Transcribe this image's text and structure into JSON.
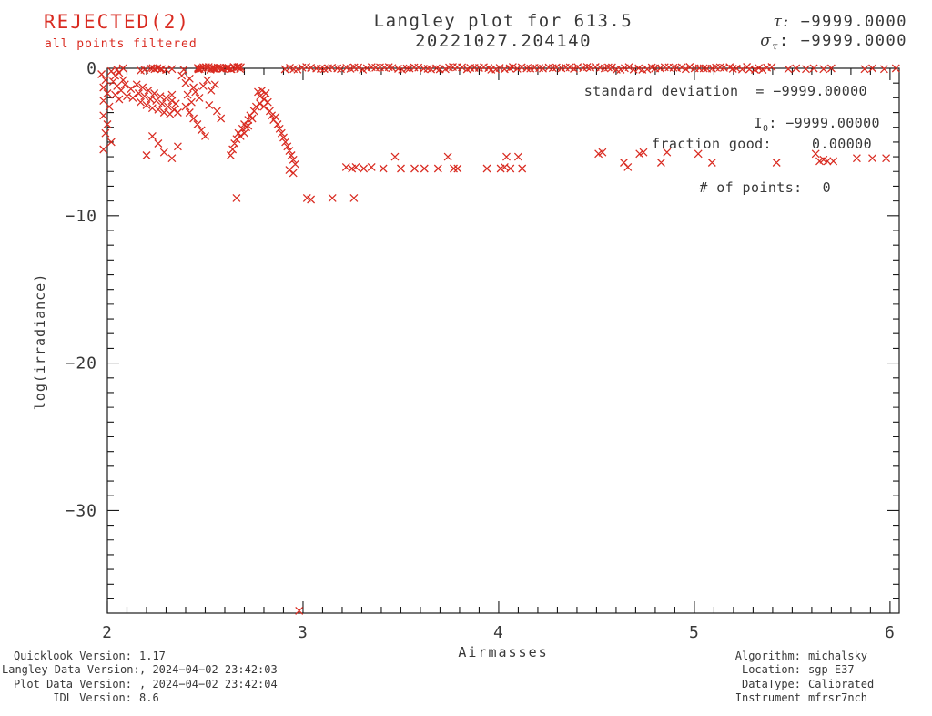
{
  "status": {
    "rejected": "REJECTED(2)",
    "rejected_detail": "all points filtered"
  },
  "header": {
    "title_line1": "Langley plot for 613.5",
    "title_line2": "20221027.204140",
    "tau_label": "τ:",
    "tau_value": "−9999.0000",
    "sigma_label": "σ",
    "sigma_sub": "τ",
    "sigma_colon": ":",
    "sigma_value": "−9999.0000"
  },
  "stats": {
    "std_label": "standard deviation",
    "std_eq": "=",
    "std_value": "−9999.00000",
    "i0_label": "I",
    "i0_sub": "0",
    "i0_colon": ":",
    "i0_value": "−9999.00000",
    "fraction_label": "fraction good:",
    "fraction_value": "0.00000",
    "points_label": "# of points:",
    "points_value": "0"
  },
  "footer_left": {
    "rows": [
      {
        "label": "Quicklook Version:",
        "value": "1.17"
      },
      {
        "label": "Langley Data Version:",
        "value": ", 2024−04−02 23:42:03"
      },
      {
        "label": "Plot Data Version:",
        "value": ", 2024−04−02 23:42:04"
      },
      {
        "label": "IDL Version:",
        "value": "8.6"
      }
    ]
  },
  "footer_right": {
    "rows": [
      {
        "label": "Algorithm:",
        "value": "michalsky"
      },
      {
        "label": "Location:",
        "value": "sgp E37"
      },
      {
        "label": "DataType:",
        "value": "Calibrated"
      },
      {
        "label": "Instrument",
        "value": "mfrsr7nch"
      }
    ]
  },
  "chart_data": {
    "type": "scatter",
    "title": "Langley plot for 613.5 20221027.204140",
    "xlabel": "Airmasses",
    "ylabel": "log(irradiance)",
    "xlim": [
      2,
      6.047
    ],
    "ylim": [
      -36.96,
      0
    ],
    "x_ticks": {
      "values": [
        2,
        3,
        4,
        5,
        6
      ],
      "labels": [
        "2",
        "3",
        "4",
        "5",
        "6"
      ],
      "minor_step": 0.1
    },
    "y_ticks": {
      "values": [
        0,
        -10,
        -20,
        -30
      ],
      "labels": [
        "0",
        "−10",
        "−20",
        "−30"
      ],
      "minor_step": 1
    },
    "grid": false,
    "legend": "none",
    "marker": "x",
    "marker_color": "#d92b21",
    "axis_color": "#1a1a1a",
    "text_color": "#383838",
    "points": [
      [
        1.97,
        -0.4
      ],
      [
        1.99,
        -0.8
      ],
      [
        1.98,
        -1.3
      ],
      [
        2.0,
        -1.7
      ],
      [
        1.98,
        -2.2
      ],
      [
        2.01,
        -2.6
      ],
      [
        1.98,
        -3.2
      ],
      [
        2.0,
        -3.8
      ],
      [
        1.99,
        -4.4
      ],
      [
        2.02,
        -5.0
      ],
      [
        1.98,
        -5.5
      ],
      [
        2.02,
        -0.2
      ],
      [
        2.04,
        -0.5
      ],
      [
        2.06,
        -0.3
      ],
      [
        2.03,
        -0.9
      ],
      [
        2.05,
        -1.2
      ],
      [
        2.08,
        -0.8
      ],
      [
        2.07,
        -1.5
      ],
      [
        2.04,
        -1.8
      ],
      [
        2.09,
        -1.1
      ],
      [
        2.1,
        -1.9
      ],
      [
        2.06,
        -2.1
      ],
      [
        2.12,
        -1.4
      ],
      [
        2.13,
        -2.0
      ],
      [
        2.15,
        -1.1
      ],
      [
        2.16,
        -1.7
      ],
      [
        2.17,
        -2.3
      ],
      [
        2.18,
        -1.3
      ],
      [
        2.19,
        -1.9
      ],
      [
        2.2,
        -2.5
      ],
      [
        2.21,
        -1.5
      ],
      [
        2.22,
        -2.1
      ],
      [
        2.23,
        -2.7
      ],
      [
        2.24,
        -1.7
      ],
      [
        2.25,
        -2.2
      ],
      [
        2.26,
        -2.8
      ],
      [
        2.27,
        -1.9
      ],
      [
        2.28,
        -2.4
      ],
      [
        2.29,
        -3.0
      ],
      [
        2.3,
        -2.0
      ],
      [
        2.31,
        -2.6
      ],
      [
        2.32,
        -3.1
      ],
      [
        2.33,
        -2.2
      ],
      [
        2.34,
        -2.8
      ],
      [
        2.35,
        -2.4
      ],
      [
        2.36,
        -3.0
      ],
      [
        2.33,
        -1.8
      ],
      [
        2.38,
        -0.5
      ],
      [
        2.4,
        -1.0
      ],
      [
        2.42,
        -0.7
      ],
      [
        2.44,
        -1.3
      ],
      [
        2.41,
        -1.8
      ],
      [
        2.43,
        -2.3
      ],
      [
        2.45,
        -1.6
      ],
      [
        2.47,
        -2.0
      ],
      [
        2.49,
        -1.2
      ],
      [
        2.51,
        -0.8
      ],
      [
        2.53,
        -1.5
      ],
      [
        2.55,
        -1.1
      ],
      [
        2.52,
        -2.5
      ],
      [
        2.56,
        -2.9
      ],
      [
        2.58,
        -3.4
      ],
      [
        2.4,
        -2.6
      ],
      [
        2.42,
        -3.0
      ],
      [
        2.44,
        -3.4
      ],
      [
        2.46,
        -3.8
      ],
      [
        2.48,
        -4.2
      ],
      [
        2.5,
        -4.6
      ],
      [
        2.23,
        -4.6
      ],
      [
        2.26,
        -5.1
      ],
      [
        2.29,
        -5.7
      ],
      [
        2.33,
        -6.1
      ],
      [
        2.2,
        -5.9
      ],
      [
        2.36,
        -5.3
      ],
      [
        2.63,
        -5.9
      ],
      [
        2.64,
        -5.5
      ],
      [
        2.65,
        -5.1
      ],
      [
        2.66,
        -4.8
      ],
      [
        2.67,
        -4.4
      ],
      [
        2.68,
        -4.6
      ],
      [
        2.69,
        -4.1
      ],
      [
        2.7,
        -3.8
      ],
      [
        2.71,
        -4.0
      ],
      [
        2.72,
        -3.5
      ],
      [
        2.73,
        -3.2
      ],
      [
        2.74,
        -3.4
      ],
      [
        2.75,
        -2.9
      ],
      [
        2.76,
        -2.6
      ],
      [
        2.7,
        -4.4
      ],
      [
        2.72,
        -3.9
      ],
      [
        2.77,
        -1.6
      ],
      [
        2.78,
        -1.9
      ],
      [
        2.79,
        -1.5
      ],
      [
        2.8,
        -2.1
      ],
      [
        2.81,
        -1.7
      ],
      [
        2.82,
        -2.3
      ],
      [
        2.8,
        -2.6
      ],
      [
        2.78,
        -2.4
      ],
      [
        2.83,
        -2.9
      ],
      [
        2.84,
        -3.2
      ],
      [
        2.85,
        -3.5
      ],
      [
        2.86,
        -3.3
      ],
      [
        2.87,
        -3.8
      ],
      [
        2.88,
        -4.1
      ],
      [
        2.89,
        -4.4
      ],
      [
        2.9,
        -4.7
      ],
      [
        2.91,
        -5.0
      ],
      [
        2.92,
        -5.3
      ],
      [
        2.93,
        -5.6
      ],
      [
        2.94,
        -5.9
      ],
      [
        2.95,
        -6.2
      ],
      [
        2.96,
        -6.5
      ],
      [
        2.93,
        -6.9
      ],
      [
        2.95,
        -7.1
      ],
      [
        2.66,
        -8.8
      ],
      [
        3.02,
        -8.8
      ],
      [
        3.04,
        -8.9
      ],
      [
        3.15,
        -8.8
      ],
      [
        3.26,
        -8.8
      ],
      [
        3.22,
        -6.7
      ],
      [
        3.25,
        -6.8
      ],
      [
        3.27,
        -6.7
      ],
      [
        3.31,
        -6.8
      ],
      [
        3.35,
        -6.7
      ],
      [
        3.41,
        -6.8
      ],
      [
        3.47,
        -6.0
      ],
      [
        3.5,
        -6.8
      ],
      [
        3.57,
        -6.8
      ],
      [
        3.62,
        -6.8
      ],
      [
        3.69,
        -6.8
      ],
      [
        3.74,
        -6.0
      ],
      [
        3.77,
        -6.8
      ],
      [
        3.79,
        -6.8
      ],
      [
        3.94,
        -6.8
      ],
      [
        4.01,
        -6.8
      ],
      [
        4.03,
        -6.7
      ],
      [
        4.04,
        -6.0
      ],
      [
        4.06,
        -6.8
      ],
      [
        4.1,
        -6.0
      ],
      [
        4.12,
        -6.8
      ],
      [
        4.51,
        -5.8
      ],
      [
        4.53,
        -5.7
      ],
      [
        4.64,
        -6.4
      ],
      [
        4.66,
        -6.7
      ],
      [
        4.72,
        -5.8
      ],
      [
        4.74,
        -5.7
      ],
      [
        4.83,
        -6.4
      ],
      [
        4.86,
        -5.7
      ],
      [
        5.02,
        -5.8
      ],
      [
        5.09,
        -6.4
      ],
      [
        5.42,
        -6.4
      ],
      [
        5.62,
        -5.8
      ],
      [
        5.64,
        -6.3
      ],
      [
        5.66,
        -6.2
      ],
      [
        5.68,
        -6.3
      ],
      [
        5.71,
        -6.3
      ],
      [
        5.83,
        -6.1
      ],
      [
        5.91,
        -6.1
      ],
      [
        5.98,
        -6.1
      ],
      [
        2.98,
        -36.8
      ],
      [
        2.05,
        -0.1
      ],
      [
        2.08,
        0
      ],
      [
        2.17,
        -0.15
      ],
      [
        2.19,
        -0.1
      ],
      [
        2.3,
        -0.1
      ],
      [
        2.33,
        -0.05
      ],
      [
        2.39,
        -0.1
      ],
      [
        5.48,
        -0.05
      ],
      [
        5.52,
        0
      ],
      [
        5.57,
        -0.05
      ],
      [
        5.61,
        0
      ],
      [
        5.66,
        -0.05
      ],
      [
        5.7,
        0
      ],
      [
        5.87,
        -0.05
      ],
      [
        5.91,
        0
      ],
      [
        5.97,
        -0.05
      ],
      [
        6.03,
        0
      ]
    ],
    "dense_rows": [
      {
        "y": 0,
        "x_from": 2.22,
        "x_to": 2.28,
        "step": 0.012
      },
      {
        "y": 0,
        "x_from": 2.46,
        "x_to": 2.68,
        "step": 0.008
      },
      {
        "y": 0,
        "x_from": 2.91,
        "x_to": 5.4,
        "step": 0.022
      }
    ]
  }
}
